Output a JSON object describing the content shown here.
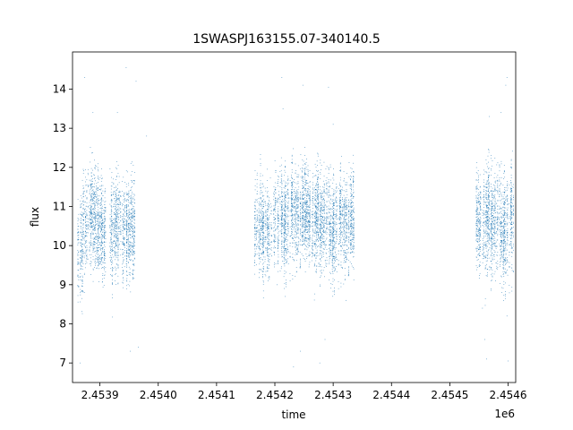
{
  "chart_data": {
    "type": "scatter",
    "title": "1SWASPJ163155.07-340140.5",
    "xlabel": "time",
    "ylabel": "flux",
    "x_offset_label": "1e6",
    "xlim": [
      2453853,
      2454613
    ],
    "ylim": [
      6.5,
      14.95
    ],
    "x_ticks": [
      2453900,
      2454000,
      2454100,
      2454200,
      2454300,
      2454400,
      2454500,
      2454600
    ],
    "x_tick_labels": [
      "2.4539",
      "2.4540",
      "2.4541",
      "2.4542",
      "2.4543",
      "2.4544",
      "2.4545",
      "2.4546"
    ],
    "y_ticks": [
      7,
      8,
      9,
      10,
      11,
      12,
      13,
      14
    ],
    "y_tick_labels": [
      "7",
      "8",
      "9",
      "10",
      "11",
      "12",
      "13",
      "14"
    ],
    "grid": false,
    "marker_color": "#1f77b4",
    "series": [
      {
        "observing_seasons": [
          {
            "x_range": [
              2453862,
              2453870
            ],
            "y_center": 9.6,
            "y_spread": 1.4
          },
          {
            "x_range": [
              2453870,
              2453900
            ],
            "y_center": 10.6,
            "y_spread": 1.4
          },
          {
            "x_range": [
              2453900,
              2453960
            ],
            "y_center": 10.5,
            "y_spread": 1.3
          },
          {
            "x_range": [
              2454165,
              2454195
            ],
            "y_center": 10.3,
            "y_spread": 1.2
          },
          {
            "x_range": [
              2454195,
              2454260
            ],
            "y_center": 10.8,
            "y_spread": 1.3
          },
          {
            "x_range": [
              2454260,
              2454335
            ],
            "y_center": 10.6,
            "y_spread": 1.3
          },
          {
            "x_range": [
              2454545,
              2454610
            ],
            "y_center": 10.6,
            "y_spread": 1.4
          }
        ],
        "outliers": [
          {
            "x": 2453866,
            "y": 7.0
          },
          {
            "x": 2453874,
            "y": 14.3
          },
          {
            "x": 2453888,
            "y": 13.4
          },
          {
            "x": 2453945,
            "y": 14.55
          },
          {
            "x": 2453962,
            "y": 14.2
          },
          {
            "x": 2453966,
            "y": 7.4
          },
          {
            "x": 2453952,
            "y": 7.3
          },
          {
            "x": 2453980,
            "y": 12.8
          },
          {
            "x": 2453930,
            "y": 13.4
          },
          {
            "x": 2454212,
            "y": 14.3
          },
          {
            "x": 2454214,
            "y": 13.5
          },
          {
            "x": 2454248,
            "y": 14.1
          },
          {
            "x": 2454244,
            "y": 7.3
          },
          {
            "x": 2454232,
            "y": 6.9
          },
          {
            "x": 2454277,
            "y": 7.0
          },
          {
            "x": 2454292,
            "y": 14.05
          },
          {
            "x": 2454286,
            "y": 7.6
          },
          {
            "x": 2454300,
            "y": 13.1
          },
          {
            "x": 2454218,
            "y": 8.7
          },
          {
            "x": 2454204,
            "y": 9.0
          },
          {
            "x": 2454322,
            "y": 8.6
          },
          {
            "x": 2454560,
            "y": 7.6
          },
          {
            "x": 2454563,
            "y": 7.1
          },
          {
            "x": 2454598,
            "y": 14.3
          },
          {
            "x": 2454596,
            "y": 14.1
          },
          {
            "x": 2454600,
            "y": 7.05
          },
          {
            "x": 2454588,
            "y": 13.4
          },
          {
            "x": 2454568,
            "y": 13.3
          },
          {
            "x": 2454598,
            "y": 8.2
          },
          {
            "x": 2454556,
            "y": 8.4
          }
        ]
      }
    ]
  }
}
